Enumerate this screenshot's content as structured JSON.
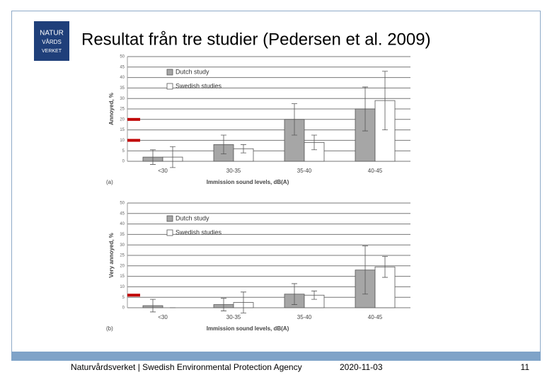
{
  "slide": {
    "logo": [
      "NATUR",
      "VÅRDS",
      "VERKET"
    ],
    "title": "Resultat från tre studier (Pedersen et al. 2009)",
    "footer": "Naturvårdsverket | Swedish Environmental Protection Agency",
    "date": "2020-11-03",
    "page": "11"
  },
  "chart_data": [
    {
      "type": "bar",
      "panel": "(a)",
      "ylabel": "Annoyed, %",
      "xlabel": "Immission sound levels, dB(A)",
      "categories": [
        "<30",
        "30-35",
        "35-40",
        "40-45"
      ],
      "series": [
        {
          "name": "Dutch study",
          "color": "#a6a6a6",
          "values": [
            2,
            8,
            20,
            25
          ],
          "errors": [
            3.5,
            4.5,
            7.5,
            10.5
          ]
        },
        {
          "name": "Swedish studies",
          "color": "#ffffff",
          "values": [
            2,
            6,
            9,
            29
          ],
          "errors": [
            5,
            2,
            3.5,
            14
          ]
        }
      ],
      "ylim": [
        0,
        50
      ],
      "yticks": [
        0,
        5,
        10,
        15,
        20,
        25,
        30,
        35,
        40,
        45,
        50
      ],
      "grid": true,
      "legend": "upper left",
      "reference_marks": {
        "color": "#c00000",
        "values": [
          20,
          10
        ]
      }
    },
    {
      "type": "bar",
      "panel": "(b)",
      "ylabel": "Very annoyed, %",
      "xlabel": "Immission sound levels, dB(A)",
      "categories": [
        "<30",
        "30-35",
        "35-40",
        "40-45"
      ],
      "series": [
        {
          "name": "Dutch study",
          "color": "#a6a6a6",
          "values": [
            1,
            1.5,
            6.5,
            18
          ],
          "errors": [
            3,
            3,
            5,
            11.5
          ]
        },
        {
          "name": "Swedish studies",
          "color": "#ffffff",
          "values": [
            0,
            2.5,
            6,
            19.5
          ],
          "errors": [
            0,
            5,
            2,
            5
          ]
        }
      ],
      "ylim": [
        0,
        50
      ],
      "yticks": [
        0,
        5,
        10,
        15,
        20,
        25,
        30,
        35,
        40,
        45,
        50
      ],
      "grid": true,
      "legend": "upper left",
      "reference_marks": {
        "color": "#c00000",
        "values": [
          6
        ]
      }
    }
  ]
}
